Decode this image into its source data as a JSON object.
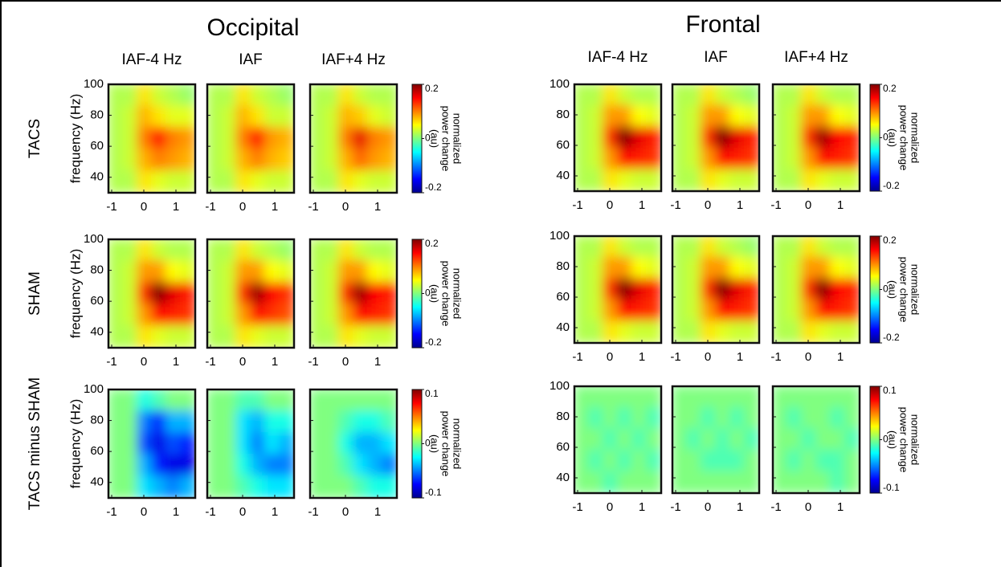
{
  "chart_data": [
    {
      "type": "heatmap",
      "title": "Occipital",
      "columns": [
        "IAF-4 Hz",
        "IAF",
        "IAF+4 Hz"
      ],
      "row_label": "TACS",
      "ylabel": "frequency (Hz)",
      "xlim": [
        -1.1,
        1.6
      ],
      "ylim": [
        30,
        100
      ],
      "xticks": [
        -1,
        0,
        1
      ],
      "yticks": [
        40,
        60,
        80,
        100
      ],
      "colorbar": {
        "lim": [
          -0.2,
          0.2
        ],
        "ticks": [
          -0.2,
          0,
          0.2
        ],
        "label": [
          "normalized",
          "power change",
          "(au)"
        ]
      },
      "panels": [
        {
          "values": [
            [
              0.02,
              0.02,
              0.06,
              0.03,
              0.02,
              0.01
            ],
            [
              0.02,
              0.03,
              0.08,
              0.06,
              0.04,
              0.04
            ],
            [
              0.02,
              0.03,
              0.1,
              0.15,
              0.1,
              0.09
            ],
            [
              0.02,
              0.03,
              0.08,
              0.1,
              0.09,
              0.08
            ],
            [
              0.02,
              0.02,
              0.06,
              0.04,
              0.03,
              0.03
            ]
          ]
        },
        {
          "values": [
            [
              0.02,
              0.02,
              0.06,
              0.03,
              0.02,
              0.01
            ],
            [
              0.02,
              0.03,
              0.08,
              0.06,
              0.03,
              0.03
            ],
            [
              0.02,
              0.03,
              0.1,
              0.15,
              0.09,
              0.08
            ],
            [
              0.02,
              0.03,
              0.08,
              0.1,
              0.08,
              0.07
            ],
            [
              0.02,
              0.02,
              0.06,
              0.04,
              0.03,
              0.03
            ]
          ]
        },
        {
          "values": [
            [
              0.02,
              0.02,
              0.06,
              0.03,
              0.02,
              0.02
            ],
            [
              0.02,
              0.03,
              0.08,
              0.07,
              0.04,
              0.03
            ],
            [
              0.02,
              0.03,
              0.1,
              0.16,
              0.1,
              0.09
            ],
            [
              0.02,
              0.03,
              0.08,
              0.11,
              0.09,
              0.08
            ],
            [
              0.02,
              0.02,
              0.06,
              0.04,
              0.03,
              0.03
            ]
          ]
        }
      ]
    },
    {
      "type": "heatmap",
      "row_label": "SHAM",
      "ylabel": "frequency (Hz)",
      "xlim": [
        -1.1,
        1.6
      ],
      "ylim": [
        30,
        100
      ],
      "xticks": [
        -1,
        0,
        1
      ],
      "yticks": [
        40,
        60,
        80,
        100
      ],
      "colorbar": {
        "lim": [
          -0.2,
          0.2
        ],
        "ticks": [
          -0.2,
          0,
          0.2
        ],
        "label": [
          "normalized",
          "power change",
          "(au)"
        ]
      },
      "panels": [
        {
          "values": [
            [
              0.02,
              0.02,
              0.06,
              0.03,
              0.02,
              0.02
            ],
            [
              0.02,
              0.03,
              0.09,
              0.09,
              0.05,
              0.04
            ],
            [
              0.02,
              0.03,
              0.13,
              0.2,
              0.16,
              0.14
            ],
            [
              0.02,
              0.03,
              0.09,
              0.15,
              0.14,
              0.13
            ],
            [
              0.02,
              0.02,
              0.06,
              0.04,
              0.03,
              0.03
            ]
          ]
        },
        {
          "values": [
            [
              0.02,
              0.02,
              0.06,
              0.03,
              0.02,
              0.01
            ],
            [
              0.02,
              0.03,
              0.09,
              0.09,
              0.05,
              0.04
            ],
            [
              0.02,
              0.03,
              0.13,
              0.19,
              0.15,
              0.13
            ],
            [
              0.02,
              0.03,
              0.09,
              0.15,
              0.13,
              0.12
            ],
            [
              0.02,
              0.02,
              0.06,
              0.04,
              0.03,
              0.03
            ]
          ]
        },
        {
          "values": [
            [
              0.02,
              0.02,
              0.06,
              0.03,
              0.02,
              0.02
            ],
            [
              0.02,
              0.03,
              0.09,
              0.09,
              0.05,
              0.04
            ],
            [
              0.02,
              0.03,
              0.13,
              0.19,
              0.15,
              0.14
            ],
            [
              0.02,
              0.03,
              0.09,
              0.15,
              0.14,
              0.13
            ],
            [
              0.02,
              0.02,
              0.06,
              0.04,
              0.03,
              0.03
            ]
          ]
        }
      ]
    },
    {
      "type": "heatmap",
      "row_label": "TACS minus SHAM",
      "ylabel": "frequency (Hz)",
      "xlim": [
        -1.1,
        1.6
      ],
      "ylim": [
        30,
        100
      ],
      "xticks": [
        -1,
        0,
        1
      ],
      "yticks": [
        40,
        60,
        80,
        100
      ],
      "colorbar": {
        "lim": [
          -0.1,
          0.1
        ],
        "ticks": [
          -0.1,
          0,
          0.1
        ],
        "label": [
          "normalized",
          "power change",
          "(au)"
        ]
      },
      "panels": [
        {
          "values": [
            [
              0,
              0,
              -0.02,
              -0.01,
              0,
              0
            ],
            [
              0,
              0,
              -0.05,
              -0.07,
              -0.04,
              -0.04
            ],
            [
              0,
              0,
              -0.06,
              -0.08,
              -0.06,
              -0.07
            ],
            [
              0,
              0,
              -0.04,
              -0.07,
              -0.08,
              -0.08
            ],
            [
              0,
              0,
              -0.03,
              -0.04,
              -0.05,
              -0.04
            ]
          ]
        },
        {
          "values": [
            [
              0,
              0,
              -0.01,
              -0.01,
              0,
              0
            ],
            [
              0,
              0,
              -0.03,
              -0.04,
              -0.02,
              -0.02
            ],
            [
              0,
              0,
              -0.03,
              -0.05,
              -0.03,
              -0.04
            ],
            [
              0,
              0,
              -0.02,
              -0.04,
              -0.05,
              -0.05
            ],
            [
              0,
              0,
              -0.01,
              -0.02,
              -0.03,
              -0.03
            ]
          ]
        },
        {
          "values": [
            [
              0,
              0,
              0,
              0,
              0,
              0
            ],
            [
              0,
              0,
              -0.01,
              -0.02,
              -0.02,
              -0.01
            ],
            [
              0,
              0,
              -0.02,
              -0.04,
              -0.04,
              -0.03
            ],
            [
              0,
              0,
              -0.01,
              -0.03,
              -0.04,
              -0.05
            ],
            [
              0,
              0,
              0,
              -0.01,
              -0.02,
              -0.02
            ]
          ]
        }
      ]
    },
    {
      "type": "heatmap",
      "title": "Frontal",
      "columns": [
        "IAF-4 Hz",
        "IAF",
        "IAF+4 Hz"
      ],
      "xlim": [
        -1.1,
        1.6
      ],
      "ylim": [
        30,
        100
      ],
      "xticks": [
        -1,
        0,
        1
      ],
      "yticks": [
        40,
        60,
        80,
        100
      ],
      "colorbar": {
        "lim": [
          -0.2,
          0.2
        ],
        "ticks": [
          -0.2,
          0,
          0.2
        ],
        "label": [
          "normalized",
          "power change",
          "(au)"
        ]
      },
      "panels": [
        {
          "values": [
            [
              0.02,
              0.02,
              0.06,
              0.03,
              0.02,
              0.02
            ],
            [
              0.02,
              0.03,
              0.09,
              0.09,
              0.05,
              0.04
            ],
            [
              0.02,
              0.03,
              0.13,
              0.2,
              0.16,
              0.14
            ],
            [
              0.02,
              0.03,
              0.09,
              0.15,
              0.14,
              0.13
            ],
            [
              0.02,
              0.02,
              0.06,
              0.04,
              0.03,
              0.03
            ]
          ]
        },
        {
          "values": [
            [
              0.02,
              0.02,
              0.06,
              0.03,
              0.02,
              0.01
            ],
            [
              0.02,
              0.03,
              0.09,
              0.09,
              0.05,
              0.04
            ],
            [
              0.02,
              0.03,
              0.13,
              0.2,
              0.16,
              0.14
            ],
            [
              0.02,
              0.03,
              0.09,
              0.15,
              0.14,
              0.13
            ],
            [
              0.02,
              0.02,
              0.06,
              0.04,
              0.03,
              0.03
            ]
          ]
        },
        {
          "values": [
            [
              0.02,
              0.02,
              0.06,
              0.03,
              0.02,
              0.02
            ],
            [
              0.02,
              0.03,
              0.09,
              0.09,
              0.05,
              0.04
            ],
            [
              0.02,
              0.03,
              0.13,
              0.19,
              0.15,
              0.14
            ],
            [
              0.02,
              0.03,
              0.09,
              0.15,
              0.14,
              0.13
            ],
            [
              0.02,
              0.02,
              0.06,
              0.04,
              0.03,
              0.03
            ]
          ]
        }
      ]
    },
    {
      "type": "heatmap",
      "xlim": [
        -1.1,
        1.6
      ],
      "ylim": [
        30,
        100
      ],
      "xticks": [
        -1,
        0,
        1
      ],
      "yticks": [
        40,
        60,
        80,
        100
      ],
      "colorbar": {
        "lim": [
          -0.2,
          0.2
        ],
        "ticks": [
          -0.2,
          0,
          0.2
        ],
        "label": [
          "normalized",
          "power change",
          "(au)"
        ]
      },
      "panels": [
        {
          "values": [
            [
              0.02,
              0.02,
              0.06,
              0.03,
              0.02,
              0.02
            ],
            [
              0.02,
              0.03,
              0.09,
              0.09,
              0.05,
              0.04
            ],
            [
              0.02,
              0.03,
              0.13,
              0.2,
              0.16,
              0.14
            ],
            [
              0.02,
              0.03,
              0.09,
              0.15,
              0.14,
              0.13
            ],
            [
              0.02,
              0.02,
              0.06,
              0.04,
              0.03,
              0.03
            ]
          ]
        },
        {
          "values": [
            [
              0.02,
              0.02,
              0.06,
              0.03,
              0.02,
              0.01
            ],
            [
              0.02,
              0.03,
              0.09,
              0.09,
              0.05,
              0.04
            ],
            [
              0.02,
              0.03,
              0.13,
              0.2,
              0.16,
              0.14
            ],
            [
              0.02,
              0.03,
              0.09,
              0.15,
              0.14,
              0.13
            ],
            [
              0.02,
              0.02,
              0.06,
              0.04,
              0.03,
              0.03
            ]
          ]
        },
        {
          "values": [
            [
              0.02,
              0.02,
              0.06,
              0.03,
              0.02,
              0.02
            ],
            [
              0.02,
              0.03,
              0.09,
              0.09,
              0.05,
              0.04
            ],
            [
              0.02,
              0.03,
              0.13,
              0.2,
              0.15,
              0.14
            ],
            [
              0.02,
              0.03,
              0.09,
              0.15,
              0.14,
              0.13
            ],
            [
              0.02,
              0.02,
              0.06,
              0.04,
              0.03,
              0.03
            ]
          ]
        }
      ]
    },
    {
      "type": "heatmap",
      "xlim": [
        -1.1,
        1.6
      ],
      "ylim": [
        30,
        100
      ],
      "xticks": [
        -1,
        0,
        1
      ],
      "yticks": [
        40,
        60,
        80,
        100
      ],
      "colorbar": {
        "lim": [
          -0.1,
          0.1
        ],
        "ticks": [
          -0.1,
          0,
          0.1
        ],
        "label": [
          "normalized",
          "power change",
          "(au)"
        ]
      },
      "panels": [
        {
          "values": [
            [
              0,
              0,
              0,
              0,
              0,
              0
            ],
            [
              0,
              -0.01,
              0,
              -0.01,
              0,
              -0.01
            ],
            [
              0,
              0,
              -0.01,
              0,
              -0.01,
              0
            ],
            [
              0,
              -0.01,
              0,
              -0.01,
              0,
              -0.01
            ],
            [
              0,
              0,
              -0.01,
              0,
              0,
              0
            ]
          ]
        },
        {
          "values": [
            [
              0,
              0,
              0,
              0,
              0,
              0
            ],
            [
              0,
              0,
              -0.01,
              0,
              -0.01,
              0
            ],
            [
              0,
              -0.01,
              0,
              -0.01,
              0,
              -0.01
            ],
            [
              0,
              0,
              -0.01,
              -0.01,
              -0.01,
              0
            ],
            [
              0,
              0,
              0,
              0,
              0,
              0
            ]
          ]
        },
        {
          "values": [
            [
              0,
              0,
              0,
              0,
              0,
              0
            ],
            [
              0,
              -0.01,
              0,
              0,
              -0.01,
              0
            ],
            [
              0,
              0,
              -0.01,
              0,
              0,
              -0.01
            ],
            [
              0,
              -0.01,
              0,
              -0.01,
              -0.01,
              0
            ],
            [
              0,
              0,
              0,
              0,
              -0.01,
              0
            ]
          ]
        }
      ]
    }
  ]
}
